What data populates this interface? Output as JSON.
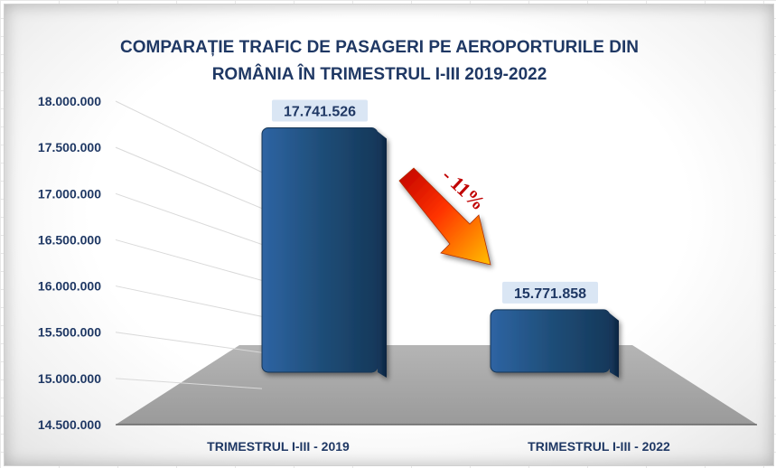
{
  "chart_data": {
    "type": "bar",
    "title_lines": [
      "COMPARAȚIE TRAFIC DE PASAGERI PE AEROPORTURILE DIN",
      "ROMÂNIA ÎN TRIMESTRUL I-III 2019-2022"
    ],
    "categories": [
      "TRIMESTRUL I-III - 2019",
      "TRIMESTRUL I-III - 2022"
    ],
    "values": [
      17741526,
      15771858
    ],
    "data_labels": [
      "17.741.526",
      "15.771.858"
    ],
    "y_ticks": [
      14500000,
      15000000,
      15500000,
      16000000,
      16500000,
      17000000,
      17500000,
      18000000
    ],
    "y_tick_labels": [
      "14.500.000",
      "15.000.000",
      "15.500.000",
      "16.000.000",
      "16.500.000",
      "17.000.000",
      "17.500.000",
      "18.000.000"
    ],
    "ylim": [
      14500000,
      18000000
    ],
    "annotation": "- 11%",
    "bar_color": "#1f4e79",
    "grid": true,
    "legend": false
  }
}
